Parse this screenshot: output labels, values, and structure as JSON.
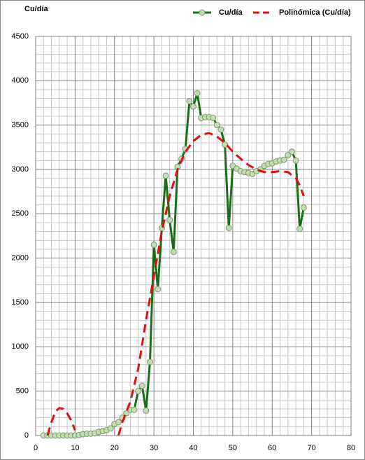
{
  "chart_data": {
    "type": "line",
    "title": "Cu/día",
    "xlim": [
      0,
      80
    ],
    "xticks": [
      0,
      10,
      20,
      30,
      40,
      50,
      60,
      70,
      80
    ],
    "ylim": [
      0,
      4500
    ],
    "yticks": [
      0,
      500,
      1000,
      1500,
      2000,
      2500,
      3000,
      3500,
      4000,
      4500
    ],
    "grid": true,
    "legend": "top-right",
    "series": [
      {
        "name": "Cu/día",
        "color": "#1a6e1a",
        "marker_color": "#c4dbb4",
        "style": "solid",
        "x": [
          2,
          3,
          4,
          5,
          6,
          7,
          8,
          9,
          10,
          11,
          12,
          13,
          14,
          15,
          16,
          17,
          18,
          19,
          20,
          21,
          22,
          23,
          24,
          25,
          26,
          27,
          28,
          29,
          30,
          31,
          32,
          33,
          34,
          35,
          36,
          37,
          38,
          39,
          40,
          41,
          42,
          43,
          44,
          45,
          46,
          47,
          48,
          49,
          50,
          51,
          52,
          53,
          54,
          55,
          56,
          57,
          58,
          59,
          60,
          61,
          62,
          63,
          64,
          65,
          66,
          67,
          68
        ],
        "values": [
          0,
          0,
          0,
          0,
          0,
          0,
          0,
          0,
          0,
          5,
          15,
          20,
          20,
          25,
          40,
          50,
          60,
          80,
          130,
          150,
          200,
          250,
          290,
          290,
          500,
          560,
          280,
          830,
          2150,
          1650,
          2340,
          2930,
          2430,
          2070,
          3030,
          3120,
          3230,
          3770,
          3710,
          3860,
          3580,
          3590,
          3590,
          3580,
          3500,
          3450,
          3280,
          2340,
          3040,
          3010,
          2980,
          2970,
          2960,
          2950,
          2980,
          3000,
          3040,
          3060,
          3070,
          3090,
          3100,
          3110,
          3160,
          3200,
          3100,
          2330,
          2570
        ]
      },
      {
        "name": "Polinómica (Cu/día)",
        "color": "#e01010",
        "style": "dashed",
        "x": [
          3,
          4,
          5,
          6,
          7,
          8,
          9,
          10,
          11,
          21,
          22,
          24,
          26,
          28,
          30,
          32,
          34,
          36,
          38,
          40,
          42,
          44,
          46,
          48,
          50,
          52,
          54,
          56,
          58,
          60,
          62,
          64,
          66,
          67,
          68
        ],
        "values": [
          0,
          150,
          270,
          310,
          300,
          250,
          170,
          60,
          null,
          0,
          150,
          380,
          750,
          1300,
          1800,
          2300,
          2700,
          3000,
          3200,
          3320,
          3390,
          3410,
          3370,
          3300,
          3200,
          3120,
          3050,
          3000,
          2970,
          2970,
          2980,
          2970,
          2900,
          2820,
          2700
        ]
      }
    ]
  }
}
